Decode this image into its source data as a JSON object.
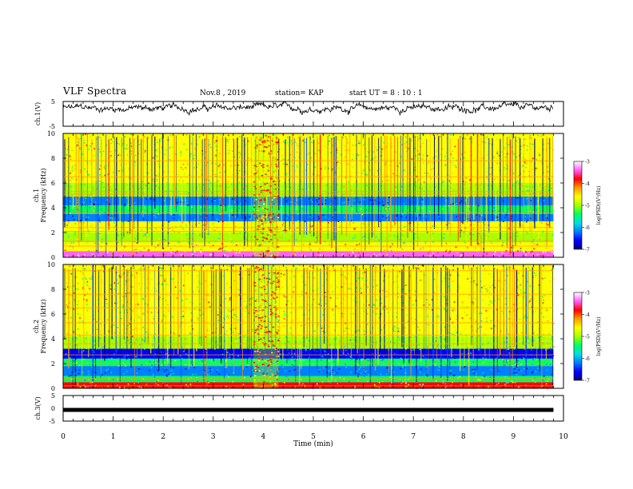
{
  "header": {
    "title": "VLF Spectra",
    "date": "Nov.8  , 2019",
    "station": "station= KAP",
    "start": "start  UT  =   8  : 10 : 1"
  },
  "chart_data": [
    {
      "type": "line",
      "panel": "ch1-waveform",
      "ylabel": "ch.1(V)",
      "ylim": [
        -5,
        5
      ],
      "yticks": [
        "5",
        "-5"
      ],
      "xlim": [
        0,
        10
      ],
      "x_extent_min": [
        0,
        9.8
      ],
      "color": "#000000",
      "noise": {
        "mean": 2.3,
        "amplitude": 1.6
      }
    },
    {
      "type": "heatmap",
      "panel": "ch1-spectrogram",
      "ylabel": [
        "ch.1",
        "Frequency  (kHz)"
      ],
      "ylim": [
        0,
        10
      ],
      "yticks": [
        "0",
        "2",
        "4",
        "6",
        "8",
        "10"
      ],
      "xlim": [
        0,
        10
      ],
      "x_extent_min": [
        0,
        9.8
      ],
      "freq_bands_khz": [
        {
          "from": 0,
          "to": 0.5,
          "level": -3.3
        },
        {
          "from": 0.5,
          "to": 1.2,
          "level": -4.4
        },
        {
          "from": 1.2,
          "to": 2.0,
          "level": -5.0
        },
        {
          "from": 2.0,
          "to": 2.9,
          "level": -4.7
        },
        {
          "from": 2.9,
          "to": 3.5,
          "level": -6.3
        },
        {
          "from": 3.5,
          "to": 4.2,
          "level": -5.4
        },
        {
          "from": 4.2,
          "to": 4.9,
          "level": -6.2
        },
        {
          "from": 4.9,
          "to": 6.0,
          "level": -4.9
        },
        {
          "from": 6.0,
          "to": 10.0,
          "level": -4.8
        }
      ],
      "tone_lines_khz": [
        0.3,
        0.9,
        1.3,
        2.1,
        2.4,
        3.6,
        5.1,
        5.3,
        6.5,
        7.8
      ],
      "burst_min": [
        3.8,
        4.3
      ]
    },
    {
      "type": "heatmap",
      "panel": "ch2-spectrogram",
      "ylabel": [
        "ch.2",
        "Frequency  (kHz)"
      ],
      "ylim": [
        0,
        10
      ],
      "yticks": [
        "0",
        "2",
        "4",
        "6",
        "8",
        "10"
      ],
      "xlim": [
        0,
        10
      ],
      "x_extent_min": [
        0,
        9.8
      ],
      "freq_bands_khz": [
        {
          "from": 0,
          "to": 0.5,
          "level": -4.0
        },
        {
          "from": 0.5,
          "to": 1.0,
          "level": -5.3
        },
        {
          "from": 1.0,
          "to": 1.8,
          "level": -6.2
        },
        {
          "from": 1.8,
          "to": 2.4,
          "level": -5.5
        },
        {
          "from": 2.4,
          "to": 3.2,
          "level": -6.4
        },
        {
          "from": 3.2,
          "to": 4.2,
          "level": -5.2
        },
        {
          "from": 4.2,
          "to": 6.0,
          "level": -4.8
        },
        {
          "from": 6.0,
          "to": 10.0,
          "level": -4.7
        }
      ],
      "tone_lines_khz": [
        0.2,
        0.8,
        2.0,
        2.7,
        3.6,
        4.3,
        5.3,
        6.5,
        7.6,
        9.5
      ],
      "burst_min": [
        3.8,
        4.3
      ]
    },
    {
      "type": "line",
      "panel": "ch3-waveform",
      "ylabel": "ch.3(V)",
      "ylim": [
        -5,
        5
      ],
      "yticks": [
        "5",
        "0",
        "-5"
      ],
      "xlim": [
        0,
        10
      ],
      "x_extent_min": [
        0,
        9.8
      ],
      "constant_value": 0,
      "xlabel": "Time  (min)",
      "xticks": [
        "0",
        "1",
        "2",
        "3",
        "4",
        "5",
        "6",
        "7",
        "8",
        "9",
        "10"
      ]
    }
  ],
  "colorbars": [
    {
      "label": "log(PSD)(V²/Hz)",
      "range": [
        -7,
        -3
      ],
      "ticks": [
        "-3",
        "-4",
        "-5",
        "-6",
        "-7"
      ]
    },
    {
      "label": "log(PSD)(V²/Hz)",
      "range": [
        -7,
        -3
      ],
      "ticks": [
        "-3",
        "-4",
        "-5",
        "-6",
        "-7"
      ]
    }
  ],
  "colormap": [
    "#00007a",
    "#0000ff",
    "#0080ff",
    "#00e0e0",
    "#00ff60",
    "#a8ff00",
    "#ffff00",
    "#ff9900",
    "#ff0000",
    "#ff60ff",
    "#ffffff"
  ]
}
